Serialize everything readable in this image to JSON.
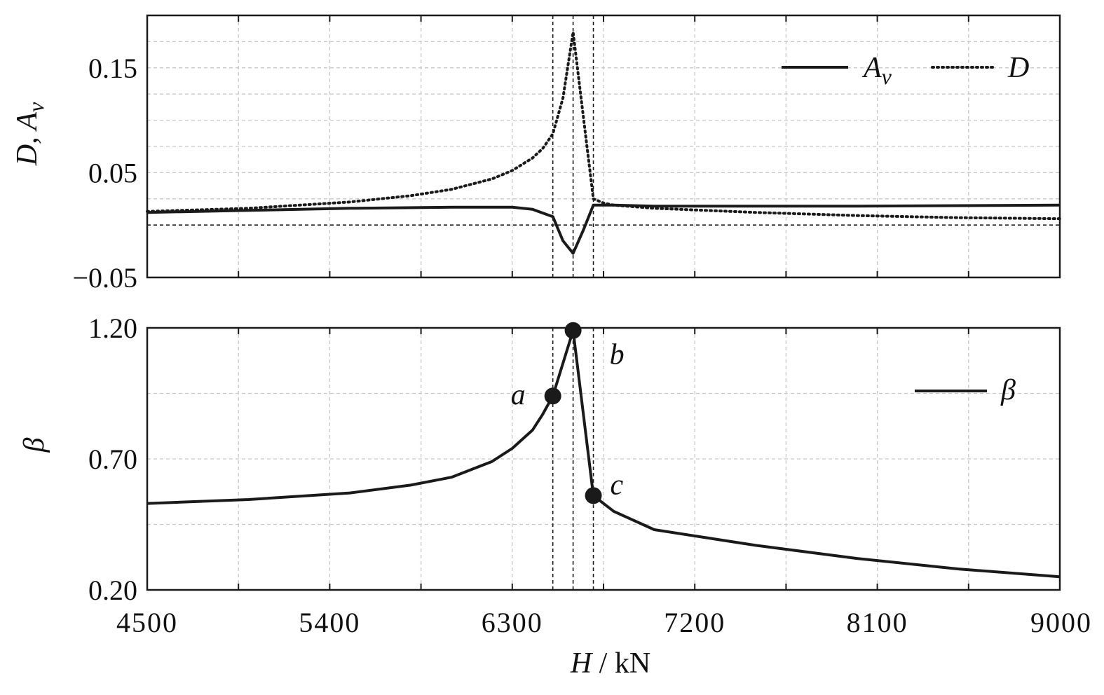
{
  "chart_data": [
    {
      "type": "line",
      "ylabel_main": "D",
      "ylabel_sep": ", ",
      "ylabel_second": "A",
      "ylabel_sub": "v",
      "ylim": [
        -0.05,
        0.2
      ],
      "yticks": [
        "0.15",
        "0.05",
        "−0.05"
      ],
      "ytick_values": [
        0.15,
        0.05,
        -0.05
      ],
      "grid": true,
      "legend_position": "top-right",
      "reference_lines": {
        "x": [
          6500,
          6600,
          6700
        ],
        "y": [
          0
        ]
      },
      "series": [
        {
          "name": "A",
          "name_sub": "v",
          "style": "solid",
          "x": [
            4500,
            5000,
            5500,
            6000,
            6300,
            6400,
            6500,
            6550,
            6600,
            6650,
            6700,
            6800,
            7000,
            8000,
            9000
          ],
          "y": [
            0.012,
            0.014,
            0.016,
            0.017,
            0.017,
            0.015,
            0.008,
            -0.015,
            -0.027,
            -0.005,
            0.019,
            0.019,
            0.018,
            0.018,
            0.019
          ]
        },
        {
          "name": "D",
          "style": "dotted",
          "x": [
            4500,
            5000,
            5500,
            5800,
            6000,
            6200,
            6300,
            6400,
            6450,
            6500,
            6550,
            6600,
            6650,
            6700,
            6750,
            6800,
            7000,
            7500,
            8000,
            8500,
            9000
          ],
          "y": [
            0.013,
            0.016,
            0.022,
            0.028,
            0.034,
            0.044,
            0.052,
            0.064,
            0.073,
            0.087,
            0.121,
            0.184,
            0.104,
            0.025,
            0.021,
            0.019,
            0.016,
            0.012,
            0.009,
            0.007,
            0.006
          ]
        }
      ]
    },
    {
      "type": "line",
      "ylabel": "β",
      "xlabel_var": "H",
      "xlabel_unit": " / kN",
      "xlim": [
        4500,
        9000
      ],
      "ylim": [
        0.2,
        1.2
      ],
      "yticks": [
        "1.20",
        "0.70",
        "0.20"
      ],
      "ytick_values": [
        1.2,
        0.7,
        0.2
      ],
      "xticks": [
        "4500",
        "5400",
        "6300",
        "7200",
        "8100",
        "9000"
      ],
      "xtick_values": [
        4500,
        5400,
        6300,
        7200,
        8100,
        9000
      ],
      "grid": true,
      "legend_position": "top-right",
      "reference_lines": {
        "x": [
          6500,
          6600,
          6700
        ]
      },
      "series": [
        {
          "name": "β",
          "style": "solid",
          "x": [
            4500,
            5000,
            5500,
            5800,
            6000,
            6200,
            6300,
            6400,
            6450,
            6500,
            6600,
            6700,
            6800,
            7000,
            7500,
            8000,
            8500,
            9000
          ],
          "y": [
            0.53,
            0.545,
            0.57,
            0.6,
            0.63,
            0.69,
            0.74,
            0.81,
            0.87,
            0.94,
            1.19,
            0.56,
            0.5,
            0.43,
            0.37,
            0.32,
            0.28,
            0.25
          ]
        }
      ],
      "points": [
        {
          "label": "a",
          "x": 6500,
          "y": 0.94
        },
        {
          "label": "b",
          "x": 6600,
          "y": 1.19
        },
        {
          "label": "c",
          "x": 6700,
          "y": 0.56
        }
      ]
    }
  ]
}
